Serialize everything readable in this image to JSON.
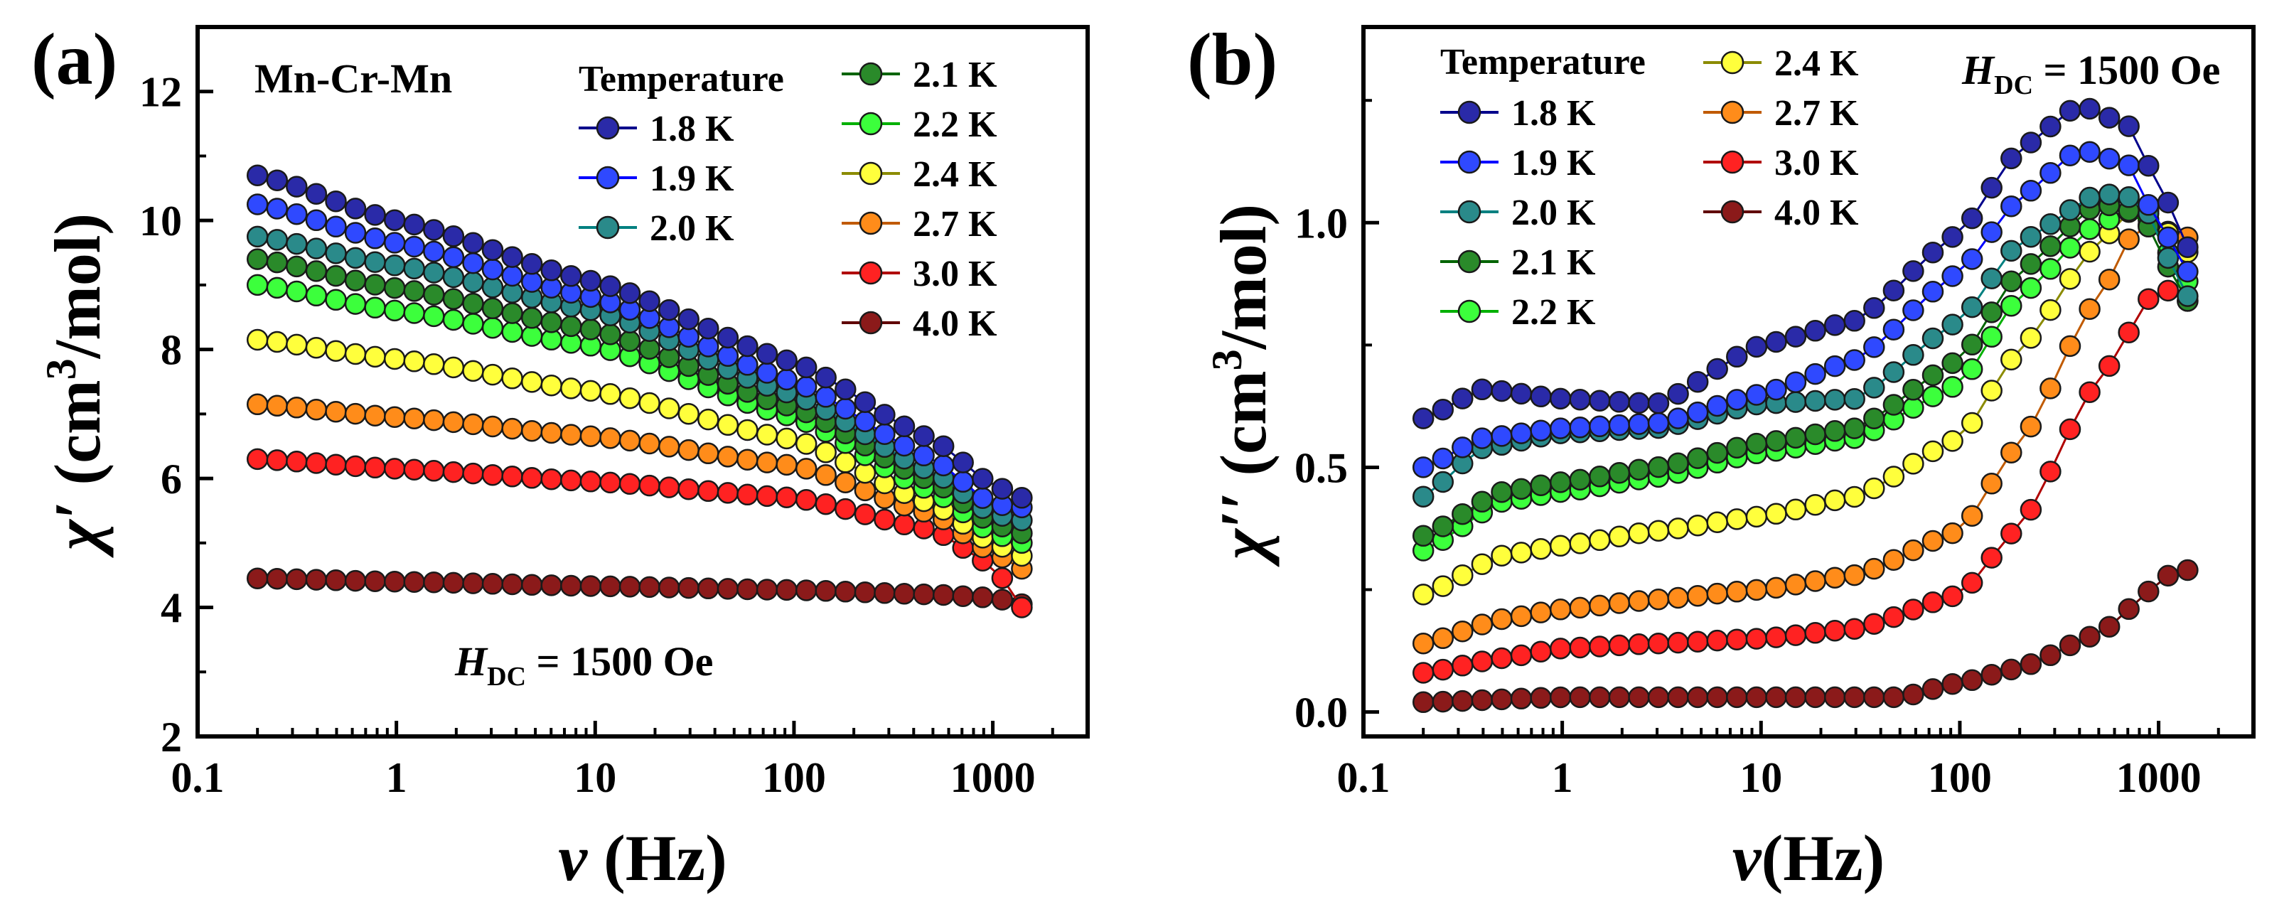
{
  "panels": [
    {
      "panel_label": "(a)",
      "sample_label": "Mn-Cr-Mn",
      "field_main": "H",
      "field_sub": "DC",
      "field_rest": " = 1500 Oe"
    },
    {
      "panel_label": "(b)",
      "field_main": "H",
      "field_sub": "DC",
      "field_rest": " = 1500 Oe"
    }
  ],
  "legend_title": "Temperature",
  "series_colors": {
    "1.8 K": "#2a2aa8",
    "1.9 K": "#2f49ff",
    "2.0 K": "#2a8a8a",
    "2.1 K": "#2a8a2a",
    "2.2 K": "#3cff3c",
    "2.4 K": "#ffff3c",
    "2.7 K": "#ff8c1a",
    "3.0 K": "#ff2222",
    "4.0 K": "#8b1a1a"
  },
  "line_colors": {
    "1.8 K": "#00008b",
    "1.9 K": "#0000ff",
    "2.0 K": "#008080",
    "2.1 K": "#006400",
    "2.2 K": "#00b000",
    "2.4 K": "#8b8b00",
    "2.7 K": "#c05a00",
    "3.0 K": "#b00000",
    "4.0 K": "#600000"
  },
  "chart_data": [
    {
      "type": "scatter",
      "xscale": "log",
      "xlabel": "ν (Hz)",
      "ylabel": "χ′ (cm3/mol)",
      "xlim": [
        0.1,
        3000
      ],
      "ylim": [
        2,
        13
      ],
      "xticks": [
        0.1,
        1,
        10,
        100,
        1000
      ],
      "xtick_labels": [
        "0.1",
        "1",
        "10",
        "100",
        "1000"
      ],
      "yticks": [
        2,
        4,
        6,
        8,
        10,
        12
      ],
      "ytick_labels": [
        "2",
        "4",
        "6",
        "8",
        "10",
        "12"
      ],
      "legend_order": [
        "1.8 K",
        "1.9 K",
        "2.0 K",
        "2.1 K",
        "2.2 K",
        "2.4 K",
        "2.7 K",
        "3.0 K",
        "4.0 K"
      ],
      "n_points": 40,
      "x_range": [
        0.2,
        1400
      ],
      "series": [
        {
          "name": "1.8 K",
          "anchors": [
            [
              0.2,
              10.7
            ],
            [
              1,
              10.0
            ],
            [
              10,
              9.05
            ],
            [
              100,
              7.8
            ],
            [
              500,
              6.6
            ],
            [
              1000,
              5.9
            ],
            [
              1400,
              5.7
            ]
          ]
        },
        {
          "name": "1.9 K",
          "anchors": [
            [
              0.2,
              10.25
            ],
            [
              1,
              9.65
            ],
            [
              10,
              8.8
            ],
            [
              100,
              7.5
            ],
            [
              500,
              6.3
            ],
            [
              1000,
              5.6
            ],
            [
              1400,
              5.55
            ]
          ]
        },
        {
          "name": "2.0 K",
          "anchors": [
            [
              0.2,
              9.75
            ],
            [
              1,
              9.3
            ],
            [
              10,
              8.6
            ],
            [
              100,
              7.3
            ],
            [
              500,
              6.1
            ],
            [
              1000,
              5.45
            ],
            [
              1400,
              5.35
            ]
          ]
        },
        {
          "name": "2.1 K",
          "anchors": [
            [
              0.2,
              9.4
            ],
            [
              1,
              8.95
            ],
            [
              10,
              8.3
            ],
            [
              100,
              7.1
            ],
            [
              500,
              5.95
            ],
            [
              1000,
              5.3
            ],
            [
              1400,
              5.15
            ]
          ]
        },
        {
          "name": "2.2 K",
          "anchors": [
            [
              0.2,
              9.0
            ],
            [
              1,
              8.6
            ],
            [
              10,
              8.05
            ],
            [
              100,
              6.95
            ],
            [
              500,
              5.8
            ],
            [
              1000,
              5.15
            ],
            [
              1400,
              5.0
            ]
          ]
        },
        {
          "name": "2.4 K",
          "anchors": [
            [
              0.2,
              8.15
            ],
            [
              1,
              7.85
            ],
            [
              10,
              7.35
            ],
            [
              100,
              6.6
            ],
            [
              500,
              5.6
            ],
            [
              1000,
              5.0
            ],
            [
              1400,
              4.8
            ]
          ]
        },
        {
          "name": "2.7 K",
          "anchors": [
            [
              0.2,
              7.15
            ],
            [
              1,
              6.95
            ],
            [
              10,
              6.65
            ],
            [
              100,
              6.2
            ],
            [
              500,
              5.45
            ],
            [
              1000,
              4.85
            ],
            [
              1400,
              4.6
            ]
          ]
        },
        {
          "name": "3.0 K",
          "anchors": [
            [
              0.2,
              6.3
            ],
            [
              1,
              6.15
            ],
            [
              10,
              5.95
            ],
            [
              100,
              5.7
            ],
            [
              500,
              5.2
            ],
            [
              1000,
              4.65
            ],
            [
              1400,
              4.0
            ]
          ]
        },
        {
          "name": "4.0 K",
          "anchors": [
            [
              0.2,
              4.45
            ],
            [
              1,
              4.4
            ],
            [
              10,
              4.33
            ],
            [
              100,
              4.27
            ],
            [
              500,
              4.2
            ],
            [
              1000,
              4.15
            ],
            [
              1400,
              4.05
            ]
          ]
        }
      ]
    },
    {
      "type": "scatter",
      "xscale": "log",
      "xlabel": "ν(Hz)",
      "ylabel": "χ′′ (cm3/mol)",
      "xlim": [
        0.1,
        3000
      ],
      "ylim": [
        -0.05,
        1.4
      ],
      "xticks": [
        0.1,
        1,
        10,
        100,
        1000
      ],
      "xtick_labels": [
        "0.1",
        "1",
        "10",
        "100",
        "1000"
      ],
      "yticks": [
        0,
        0.5,
        1.0
      ],
      "ytick_labels": [
        "0.0",
        "0.5",
        "1.0"
      ],
      "legend_order": [
        "1.8 K",
        "1.9 K",
        "2.0 K",
        "2.1 K",
        "2.2 K",
        "2.4 K",
        "2.7 K",
        "3.0 K",
        "4.0 K"
      ],
      "n_points": 40,
      "x_range": [
        0.2,
        1400
      ],
      "series": [
        {
          "name": "1.8 K",
          "anchors": [
            [
              0.2,
              0.6
            ],
            [
              0.4,
              0.66
            ],
            [
              1,
              0.64
            ],
            [
              3,
              0.63
            ],
            [
              10,
              0.75
            ],
            [
              30,
              0.8
            ],
            [
              100,
              0.98
            ],
            [
              200,
              1.15
            ],
            [
              400,
              1.24
            ],
            [
              700,
              1.2
            ],
            [
              1000,
              1.08
            ],
            [
              1400,
              0.95
            ]
          ]
        },
        {
          "name": "1.9 K",
          "anchors": [
            [
              0.2,
              0.5
            ],
            [
              0.4,
              0.56
            ],
            [
              1,
              0.58
            ],
            [
              3,
              0.59
            ],
            [
              10,
              0.65
            ],
            [
              30,
              0.72
            ],
            [
              100,
              0.9
            ],
            [
              200,
              1.05
            ],
            [
              400,
              1.15
            ],
            [
              700,
              1.12
            ],
            [
              1000,
              1.0
            ],
            [
              1400,
              0.9
            ]
          ]
        },
        {
          "name": "2.0 K",
          "anchors": [
            [
              0.2,
              0.44
            ],
            [
              0.4,
              0.54
            ],
            [
              1,
              0.57
            ],
            [
              3,
              0.58
            ],
            [
              10,
              0.63
            ],
            [
              30,
              0.64
            ],
            [
              100,
              0.8
            ],
            [
              200,
              0.96
            ],
            [
              500,
              1.06
            ],
            [
              800,
              1.05
            ],
            [
              1400,
              0.85
            ]
          ]
        },
        {
          "name": "2.1 K",
          "anchors": [
            [
              0.2,
              0.36
            ],
            [
              0.5,
              0.45
            ],
            [
              1,
              0.47
            ],
            [
              3,
              0.5
            ],
            [
              10,
              0.55
            ],
            [
              30,
              0.58
            ],
            [
              100,
              0.72
            ],
            [
              200,
              0.9
            ],
            [
              500,
              1.04
            ],
            [
              800,
              1.02
            ],
            [
              1400,
              0.84
            ]
          ]
        },
        {
          "name": "2.2 K",
          "anchors": [
            [
              0.2,
              0.33
            ],
            [
              0.5,
              0.43
            ],
            [
              1,
              0.45
            ],
            [
              3,
              0.48
            ],
            [
              10,
              0.53
            ],
            [
              30,
              0.56
            ],
            [
              100,
              0.67
            ],
            [
              200,
              0.85
            ],
            [
              500,
              1.0
            ],
            [
              800,
              1.03
            ],
            [
              1400,
              0.88
            ]
          ]
        },
        {
          "name": "2.4 K",
          "anchors": [
            [
              0.2,
              0.24
            ],
            [
              0.5,
              0.32
            ],
            [
              1,
              0.34
            ],
            [
              3,
              0.37
            ],
            [
              10,
              0.4
            ],
            [
              30,
              0.44
            ],
            [
              100,
              0.56
            ],
            [
              200,
              0.74
            ],
            [
              500,
              0.96
            ],
            [
              800,
              1.04
            ],
            [
              1400,
              0.94
            ]
          ]
        },
        {
          "name": "2.7 K",
          "anchors": [
            [
              0.2,
              0.14
            ],
            [
              0.5,
              0.19
            ],
            [
              1,
              0.21
            ],
            [
              3,
              0.23
            ],
            [
              10,
              0.25
            ],
            [
              30,
              0.28
            ],
            [
              100,
              0.37
            ],
            [
              200,
              0.55
            ],
            [
              500,
              0.85
            ],
            [
              800,
              1.0
            ],
            [
              1400,
              0.97
            ]
          ]
        },
        {
          "name": "3.0 K",
          "anchors": [
            [
              0.2,
              0.08
            ],
            [
              0.5,
              0.11
            ],
            [
              1,
              0.13
            ],
            [
              3,
              0.14
            ],
            [
              10,
              0.15
            ],
            [
              30,
              0.17
            ],
            [
              100,
              0.24
            ],
            [
              200,
              0.38
            ],
            [
              500,
              0.68
            ],
            [
              1000,
              0.87
            ],
            [
              1400,
              0.84
            ]
          ]
        },
        {
          "name": "4.0 K",
          "anchors": [
            [
              0.2,
              0.02
            ],
            [
              1,
              0.03
            ],
            [
              10,
              0.03
            ],
            [
              50,
              0.03
            ],
            [
              100,
              0.06
            ],
            [
              200,
              0.09
            ],
            [
              500,
              0.16
            ],
            [
              1000,
              0.26
            ],
            [
              1200,
              0.29
            ],
            [
              1400,
              0.29
            ]
          ]
        }
      ]
    }
  ]
}
